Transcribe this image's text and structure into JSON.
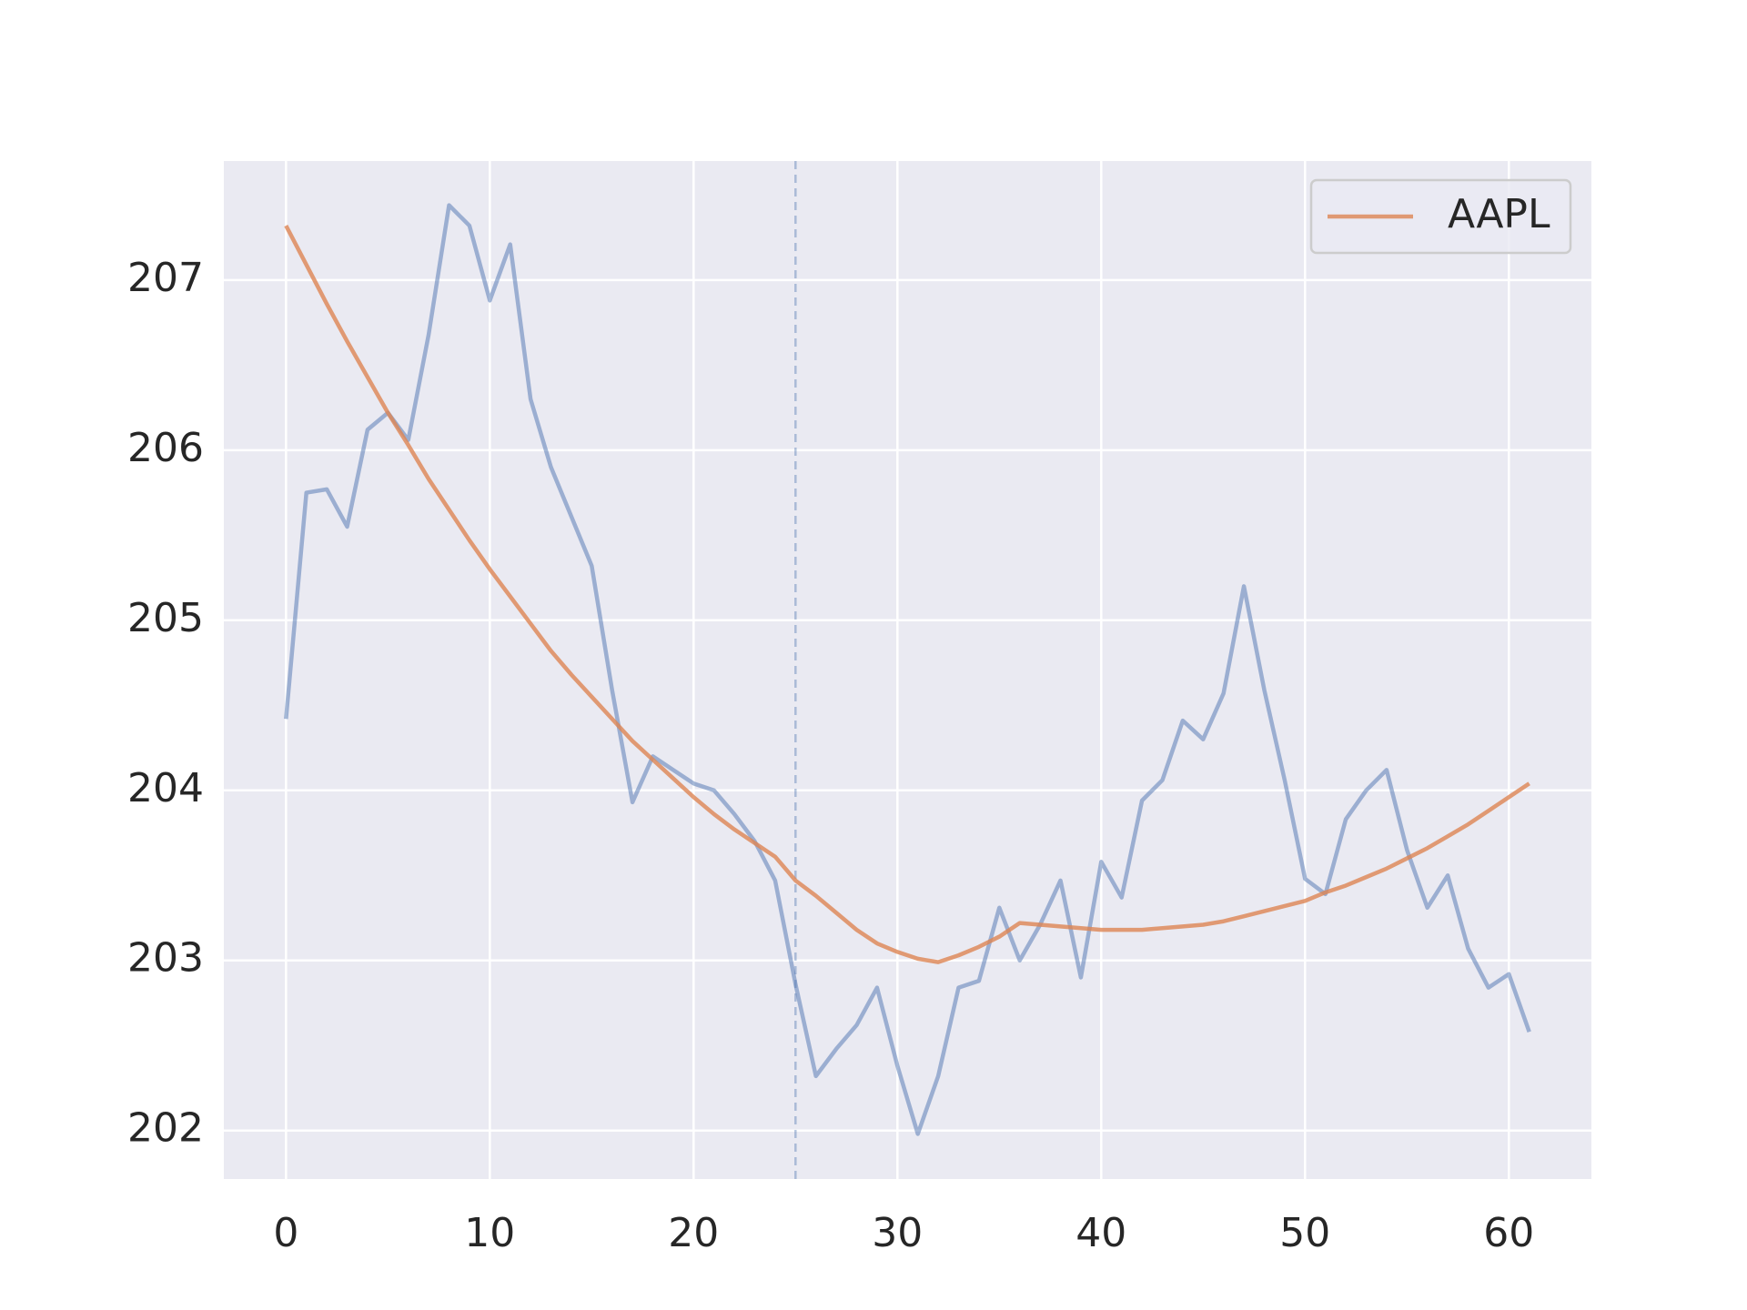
{
  "chart_data": {
    "type": "line",
    "x": [
      0,
      1,
      2,
      3,
      4,
      5,
      6,
      7,
      8,
      9,
      10,
      11,
      12,
      13,
      14,
      15,
      16,
      17,
      18,
      19,
      20,
      21,
      22,
      23,
      24,
      25,
      26,
      27,
      28,
      29,
      30,
      31,
      32,
      33,
      34,
      35,
      36,
      37,
      38,
      39,
      40,
      41,
      42,
      43,
      44,
      45,
      46,
      47,
      48,
      49,
      50,
      51,
      52,
      53,
      54,
      55,
      56,
      57,
      58,
      59,
      60,
      61
    ],
    "series": [
      {
        "color": "#4c72b0",
        "values": [
          204.42,
          205.75,
          205.77,
          205.55,
          206.12,
          206.22,
          206.06,
          206.68,
          207.44,
          207.32,
          206.88,
          207.21,
          206.3,
          205.9,
          205.61,
          205.32,
          204.59,
          203.93,
          204.2,
          204.12,
          204.04,
          204.0,
          203.86,
          203.7,
          203.47,
          202.86,
          202.32,
          202.48,
          202.62,
          202.84,
          202.38,
          201.98,
          202.32,
          202.84,
          202.88,
          203.31,
          203.0,
          203.21,
          203.47,
          202.9,
          203.58,
          203.37,
          203.94,
          204.06,
          204.41,
          204.3,
          204.57,
          205.2,
          204.59,
          204.06,
          203.48,
          203.39,
          203.83,
          204.0,
          204.12,
          203.65,
          203.31,
          203.5,
          203.07,
          202.84,
          202.92,
          202.58
        ]
      },
      {
        "name": "AAPL",
        "color": "#dd8452",
        "values": [
          207.32,
          207.09,
          206.86,
          206.64,
          206.43,
          206.22,
          206.03,
          205.83,
          205.65,
          205.47,
          205.3,
          205.14,
          204.98,
          204.82,
          204.68,
          204.55,
          204.42,
          204.29,
          204.18,
          204.07,
          203.96,
          203.86,
          203.77,
          203.69,
          203.61,
          203.47,
          203.38,
          203.28,
          203.18,
          203.1,
          203.05,
          203.01,
          202.99,
          203.03,
          203.08,
          203.14,
          203.22,
          203.21,
          203.2,
          203.19,
          203.18,
          203.18,
          203.18,
          203.19,
          203.2,
          203.21,
          203.23,
          203.26,
          203.29,
          203.32,
          203.35,
          203.4,
          203.44,
          203.49,
          203.54,
          203.6,
          203.66,
          203.73,
          203.8,
          203.88,
          203.96,
          204.04
        ]
      }
    ],
    "xlim": [
      -3.05,
      64.05
    ],
    "xticks": [
      0,
      10,
      20,
      30,
      40,
      50,
      60
    ],
    "ylim": [
      201.715,
      207.7
    ],
    "yticks": [
      202,
      203,
      204,
      205,
      206,
      207
    ],
    "vline_x": 25,
    "grid": true,
    "legend": "upper right"
  }
}
